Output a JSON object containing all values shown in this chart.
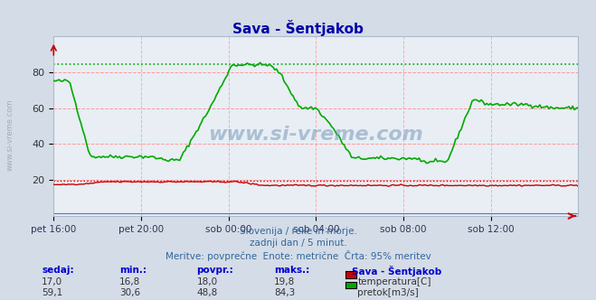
{
  "title": "Sava - Šentjakob",
  "bg_color": "#d4dce8",
  "plot_bg_color": "#e8eef4",
  "grid_color_h": "#ff9999",
  "grid_color_v": "#ffaaaa",
  "x_tick_labels": [
    "pet 16:00",
    "pet 20:00",
    "sob 00:00",
    "sob 04:00",
    "sob 08:00",
    "sob 12:00"
  ],
  "x_tick_positions": [
    0.0,
    0.1667,
    0.3333,
    0.5,
    0.6667,
    0.8333
  ],
  "y_ticks": [
    20,
    40,
    60,
    80
  ],
  "ylim": [
    0,
    100
  ],
  "xlim": [
    0,
    1
  ],
  "temp_color": "#cc0000",
  "flow_color": "#00aa00",
  "temp_max_line_color": "#ff6666",
  "flow_max_line_color": "#00cc00",
  "subtitle1": "Slovenija / reke in morje.",
  "subtitle2": "zadnji dan / 5 minut.",
  "subtitle3": "Meritve: povprečne  Enote: metrične  Črta: 95% meritev",
  "legend_title": "Sava - Šentjakob",
  "legend_items": [
    {
      "label": "temperatura[C]",
      "color": "#cc0000"
    },
    {
      "label": "pretok[m3/s]",
      "color": "#00aa00"
    }
  ],
  "table_headers": [
    "sedaj:",
    "min.:",
    "povpr.:",
    "maks.:"
  ],
  "table_row1": [
    "17,0",
    "16,8",
    "18,0",
    "19,8"
  ],
  "table_row2": [
    "59,1",
    "30,6",
    "48,8",
    "84,3"
  ],
  "watermark": "www.si-vreme.com",
  "temp_max": 19.8,
  "flow_max": 84.3,
  "temp_avg": 18.0,
  "flow_avg": 48.8
}
